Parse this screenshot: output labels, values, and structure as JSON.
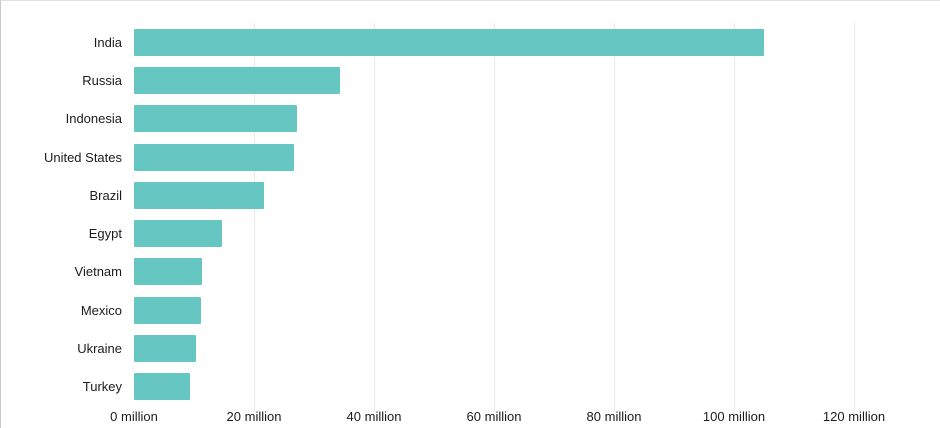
{
  "chart_data": {
    "type": "bar",
    "orientation": "horizontal",
    "title": "",
    "xlabel": "",
    "ylabel": "",
    "unit": "million",
    "categories": [
      "India",
      "Russia",
      "Indonesia",
      "United States",
      "Brazil",
      "Egypt",
      "Vietnam",
      "Mexico",
      "Ukraine",
      "Turkey"
    ],
    "values": [
      105.0,
      34.3,
      27.1,
      26.7,
      21.6,
      14.6,
      11.4,
      11.1,
      10.3,
      9.3
    ],
    "x_ticks": [
      0,
      20,
      40,
      60,
      80,
      100,
      120
    ],
    "x_tick_labels": [
      "0 million",
      "20 million",
      "40 million",
      "60 million",
      "80 million",
      "100 million",
      "120 million"
    ],
    "xlim": [
      0,
      126.5
    ],
    "grid": true,
    "gridlines_at": [
      20,
      40,
      60,
      80,
      100,
      120
    ],
    "legend": false,
    "colors": {
      "bar": "#66C6C2",
      "gridline": "#e9e9e9",
      "label": "#1c1c1c",
      "background": "#ffffff"
    }
  }
}
